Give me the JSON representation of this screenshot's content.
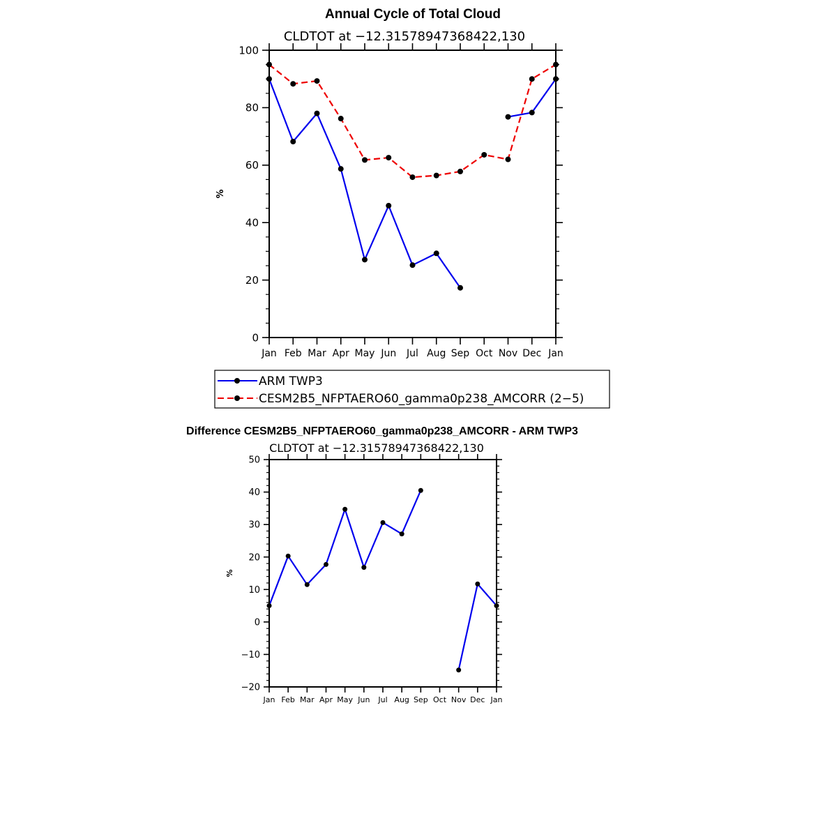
{
  "chart_data": [
    {
      "type": "line",
      "title": "Annual Cycle of Total Cloud",
      "subtitle": "CLDTOT at −12.31578947368422,130",
      "ylabel": "%",
      "xlabel": "",
      "ylim": [
        0,
        100
      ],
      "yticks": [
        0,
        20,
        40,
        60,
        80,
        100
      ],
      "categories": [
        "Jan",
        "Feb",
        "Mar",
        "Apr",
        "May",
        "Jun",
        "Jul",
        "Aug",
        "Sep",
        "Oct",
        "Nov",
        "Dec",
        "Jan"
      ],
      "series": [
        {
          "name": "ARM TWP3",
          "color": "#0000ee",
          "dash": "solid",
          "values": [
            90,
            68.2,
            78,
            58.7,
            27.1,
            45.9,
            25.2,
            29.3,
            17.3,
            null,
            76.8,
            78.3,
            90
          ]
        },
        {
          "name": "CESM2B5_NFPTAERO60_gamma0p238_AMCORR (2−5)",
          "color": "#ee0000",
          "dash": "dashed",
          "values": [
            95,
            88.3,
            89.3,
            76.2,
            61.8,
            62.6,
            55.8,
            56.4,
            57.8,
            63.6,
            62,
            90,
            95
          ]
        }
      ],
      "legend": {
        "entries": [
          "ARM TWP3",
          "CESM2B5_NFPTAERO60_gamma0p238_AMCORR (2−5)"
        ],
        "placement": "below"
      }
    },
    {
      "type": "line",
      "title": "Difference CESM2B5_NFPTAERO60_gamma0p238_AMCORR - ARM TWP3",
      "subtitle": "CLDTOT at −12.31578947368422,130",
      "ylabel": "%",
      "xlabel": "",
      "ylim": [
        -20,
        50
      ],
      "yticks": [
        -20,
        -10,
        0,
        10,
        20,
        30,
        40,
        50
      ],
      "categories": [
        "Jan",
        "Feb",
        "Mar",
        "Apr",
        "May",
        "Jun",
        "Jul",
        "Aug",
        "Sep",
        "Oct",
        "Nov",
        "Dec",
        "Jan"
      ],
      "series": [
        {
          "name": "Difference",
          "color": "#0000ee",
          "dash": "solid",
          "values": [
            5,
            20.3,
            11.5,
            17.7,
            34.7,
            16.8,
            30.6,
            27.1,
            40.5,
            null,
            -14.8,
            11.7,
            5
          ]
        }
      ]
    }
  ]
}
